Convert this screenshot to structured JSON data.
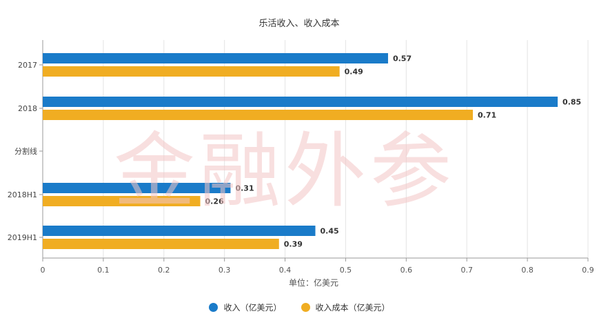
{
  "watermark": "金融外参",
  "chart_data": {
    "type": "bar",
    "orientation": "horizontal",
    "title": "乐活收入、收入成本",
    "xlabel": "单位：亿美元",
    "ylabel": "",
    "xlim": [
      0,
      0.9
    ],
    "x_ticks": [
      "0",
      "0.1",
      "0.2",
      "0.3",
      "0.4",
      "0.5",
      "0.6",
      "0.7",
      "0.8",
      "0.9"
    ],
    "grid": true,
    "legend_position": "bottom",
    "categories": [
      "2017",
      "2018",
      "分割线",
      "2018H1",
      "2019H1"
    ],
    "series": [
      {
        "name": "收入（亿美元）",
        "color": "#1a7bc9",
        "values": [
          0.57,
          0.85,
          null,
          0.31,
          0.45
        ],
        "labels": [
          "0.57",
          "0.85",
          "",
          "0.31",
          "0.45"
        ]
      },
      {
        "name": "收入成本（亿美元）",
        "color": "#f0ad22",
        "values": [
          0.49,
          0.71,
          null,
          0.26,
          0.39
        ],
        "labels": [
          "0.49",
          "0.71",
          "",
          "0.26",
          "0.39"
        ]
      }
    ]
  }
}
